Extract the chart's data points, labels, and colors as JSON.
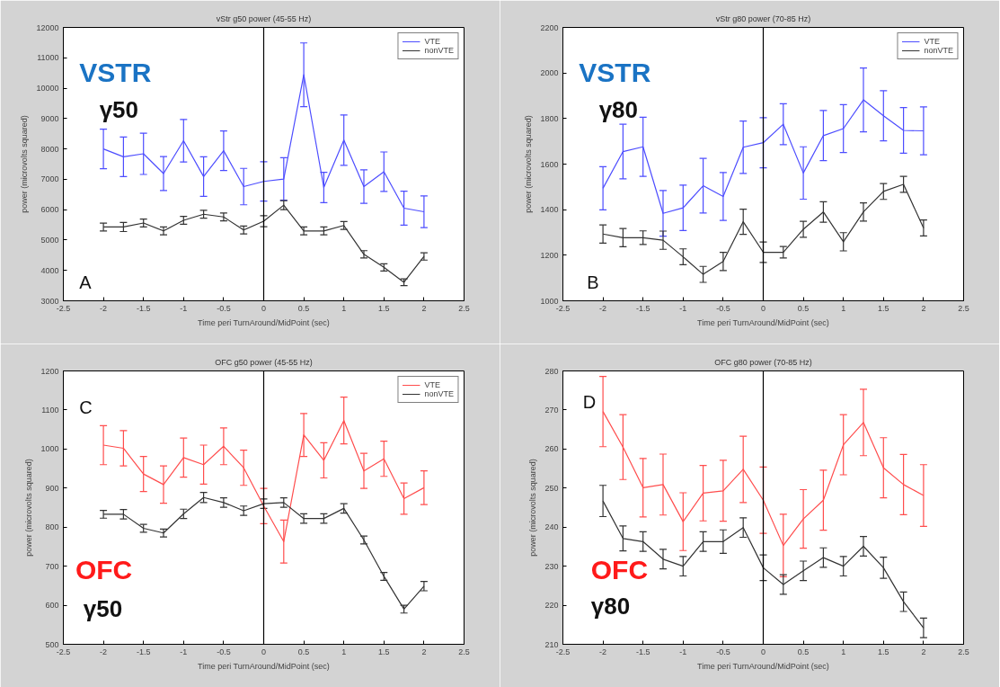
{
  "chart_data": [
    {
      "type": "line",
      "title": "vStr g50 power (45-55 Hz)",
      "xlabel": "Time peri TurnAround/MidPoint (sec)",
      "ylabel": "power (microvolts squared)",
      "x": [
        -2,
        -1.75,
        -1.5,
        -1.25,
        -1,
        -0.75,
        -0.5,
        -0.25,
        0,
        0.25,
        0.5,
        0.75,
        1,
        1.25,
        1.5,
        1.75,
        2
      ],
      "series": [
        {
          "name": "VTE",
          "color": "#4d4dff",
          "values": [
            8000,
            7740,
            7840,
            7190,
            8270,
            7090,
            7940,
            6760,
            6930,
            7010,
            10440,
            6730,
            8290,
            6760,
            7250,
            6050,
            5930
          ],
          "errors": [
            650,
            650,
            680,
            560,
            700,
            650,
            650,
            600,
            650,
            700,
            1050,
            500,
            830,
            550,
            650,
            560,
            520
          ]
        },
        {
          "name": "nonVTE",
          "color": "#333333",
          "values": [
            5430,
            5430,
            5560,
            5300,
            5650,
            5850,
            5760,
            5330,
            5620,
            6150,
            5300,
            5300,
            5480,
            4530,
            4100,
            3610,
            4460
          ],
          "errors": [
            130,
            150,
            130,
            130,
            130,
            130,
            130,
            130,
            180,
            150,
            130,
            130,
            130,
            120,
            120,
            110,
            120
          ]
        }
      ],
      "xlim": [
        -2.5,
        2.5
      ],
      "xticks": [
        -2.5,
        -2,
        -1.5,
        -1,
        -0.5,
        0,
        0.5,
        1,
        1.5,
        2,
        2.5
      ],
      "ylim": [
        3000,
        12000
      ],
      "yticks": [
        3000,
        4000,
        5000,
        6000,
        7000,
        8000,
        9000,
        10000,
        11000,
        12000
      ],
      "ref_lines": [
        {
          "axis": "x",
          "value": 0,
          "color": "#000000"
        }
      ],
      "annotations": [
        "VSTR",
        "γ50",
        "A"
      ],
      "legend": "top right",
      "grid": false,
      "marker": "none",
      "line_style": "solid"
    },
    {
      "type": "line",
      "title": "vStr g80 power (70-85 Hz)",
      "xlabel": "Time peri TurnAround/MidPoint (sec)",
      "ylabel": "power (microvolts squared)",
      "x": [
        -2,
        -1.75,
        -1.5,
        -1.25,
        -1,
        -0.75,
        -0.5,
        -0.25,
        0,
        0.25,
        0.5,
        0.75,
        1,
        1.25,
        1.5,
        1.75,
        2
      ],
      "series": [
        {
          "name": "VTE",
          "color": "#4d4dff",
          "values": [
            1494,
            1655,
            1676,
            1384,
            1408,
            1505,
            1458,
            1674,
            1694,
            1775,
            1561,
            1725,
            1756,
            1882,
            1812,
            1748,
            1746
          ],
          "errors": [
            95,
            120,
            130,
            100,
            100,
            120,
            105,
            115,
            110,
            90,
            115,
            110,
            105,
            140,
            110,
            100,
            105
          ]
        },
        {
          "name": "nonVTE",
          "color": "#333333",
          "values": [
            1293,
            1277,
            1277,
            1266,
            1193,
            1116,
            1173,
            1347,
            1213,
            1213,
            1314,
            1390,
            1259,
            1390,
            1480,
            1511,
            1320
          ],
          "errors": [
            40,
            40,
            30,
            40,
            35,
            35,
            40,
            55,
            45,
            25,
            35,
            45,
            40,
            40,
            35,
            35,
            35
          ]
        }
      ],
      "xlim": [
        -2.5,
        2.5
      ],
      "xticks": [
        -2.5,
        -2,
        -1.5,
        -1,
        -0.5,
        0,
        0.5,
        1,
        1.5,
        2,
        2.5
      ],
      "ylim": [
        1000,
        2200
      ],
      "yticks": [
        1000,
        1200,
        1400,
        1600,
        1800,
        2000,
        2200
      ],
      "ref_lines": [
        {
          "axis": "x",
          "value": 0,
          "color": "#000000"
        }
      ],
      "annotations": [
        "VSTR",
        "γ80",
        "B"
      ],
      "legend": "top right",
      "grid": false,
      "marker": "none",
      "line_style": "solid"
    },
    {
      "type": "line",
      "title": "OFC g50 power (45-55 Hz)",
      "xlabel": "Time peri TurnAround/MidPoint (sec)",
      "ylabel": "power (microvolts squared)",
      "x": [
        -2,
        -1.75,
        -1.5,
        -1.25,
        -1,
        -0.75,
        -0.5,
        -0.25,
        0,
        0.25,
        0.5,
        0.75,
        1,
        1.25,
        1.5,
        1.75,
        2
      ],
      "series": [
        {
          "name": "VTE",
          "color": "#ff4d4d",
          "values": [
            1010,
            1002,
            936,
            909,
            978,
            960,
            1007,
            952,
            854,
            763,
            1036,
            971,
            1073,
            944,
            975,
            873,
            901
          ],
          "errors": [
            50,
            45,
            45,
            48,
            50,
            50,
            47,
            45,
            45,
            55,
            55,
            45,
            60,
            45,
            45,
            40,
            43
          ]
        },
        {
          "name": "nonVTE",
          "color": "#333333",
          "values": [
            833,
            833,
            797,
            785,
            834,
            876,
            863,
            842,
            860,
            863,
            822,
            822,
            848,
            767,
            674,
            590,
            649
          ],
          "errors": [
            10,
            12,
            10,
            10,
            12,
            13,
            12,
            12,
            12,
            12,
            12,
            12,
            12,
            10,
            10,
            10,
            12
          ]
        }
      ],
      "xlim": [
        -2.5,
        2.5
      ],
      "xticks": [
        -2.5,
        -2,
        -1.5,
        -1,
        -0.5,
        0,
        0.5,
        1,
        1.5,
        2,
        2.5
      ],
      "ylim": [
        500,
        1200
      ],
      "yticks": [
        500,
        600,
        700,
        800,
        900,
        1000,
        1100,
        1200
      ],
      "ref_lines": [
        {
          "axis": "x",
          "value": 0,
          "color": "#000000"
        }
      ],
      "annotations": [
        "C",
        "OFC",
        "γ50"
      ],
      "legend": "top right",
      "grid": false,
      "marker": "none",
      "line_style": "solid"
    },
    {
      "type": "line",
      "title": "OFC g80 power (70-85 Hz)",
      "xlabel": "Time peri TurnAround/MidPoint (sec)",
      "ylabel": "power (microvolts squared)",
      "x": [
        -2,
        -1.75,
        -1.5,
        -1.25,
        -1,
        -0.75,
        -0.5,
        -0.25,
        0,
        0.25,
        0.5,
        0.75,
        1,
        1.25,
        1.5,
        1.75,
        2
      ],
      "series": [
        {
          "color": "#ff4d4d",
          "values": [
            269.6,
            260.5,
            250.1,
            250.9,
            241.4,
            248.7,
            249.3,
            254.8,
            246.9,
            235.3,
            242.1,
            246.9,
            261.1,
            266.8,
            255.2,
            250.9,
            248.1
          ],
          "errors": [
            9,
            8.3,
            7.5,
            7.8,
            7.4,
            7.1,
            7.8,
            8.5,
            8.5,
            8,
            7.5,
            7.7,
            7.7,
            8.5,
            7.7,
            7.7,
            7.9
          ]
        },
        {
          "color": "#333333",
          "values": [
            246.7,
            237.1,
            236.3,
            231.8,
            230,
            236.3,
            236.3,
            239.9,
            229.6,
            225.3,
            228.8,
            232.2,
            230,
            235.1,
            229.6,
            220.9,
            214.2
          ],
          "errors": [
            4,
            3.2,
            2.5,
            2.5,
            2.5,
            2.5,
            3,
            2.5,
            3.3,
            2.5,
            2.5,
            2.5,
            2.5,
            2.5,
            2.7,
            2.5,
            2.5
          ]
        }
      ],
      "xlim": [
        -2.5,
        2.5
      ],
      "xticks": [
        -2.5,
        -2,
        -1.5,
        -1,
        -0.5,
        0,
        0.5,
        1,
        1.5,
        2,
        2.5
      ],
      "ylim": [
        210,
        280
      ],
      "yticks": [
        210,
        220,
        230,
        240,
        250,
        260,
        270,
        280
      ],
      "ref_lines": [
        {
          "axis": "x",
          "value": 0,
          "color": "#000000"
        }
      ],
      "annotations": [
        "D",
        "OFC",
        "γ80"
      ],
      "legend": false,
      "grid": false,
      "marker": "none",
      "line_style": "solid"
    }
  ]
}
